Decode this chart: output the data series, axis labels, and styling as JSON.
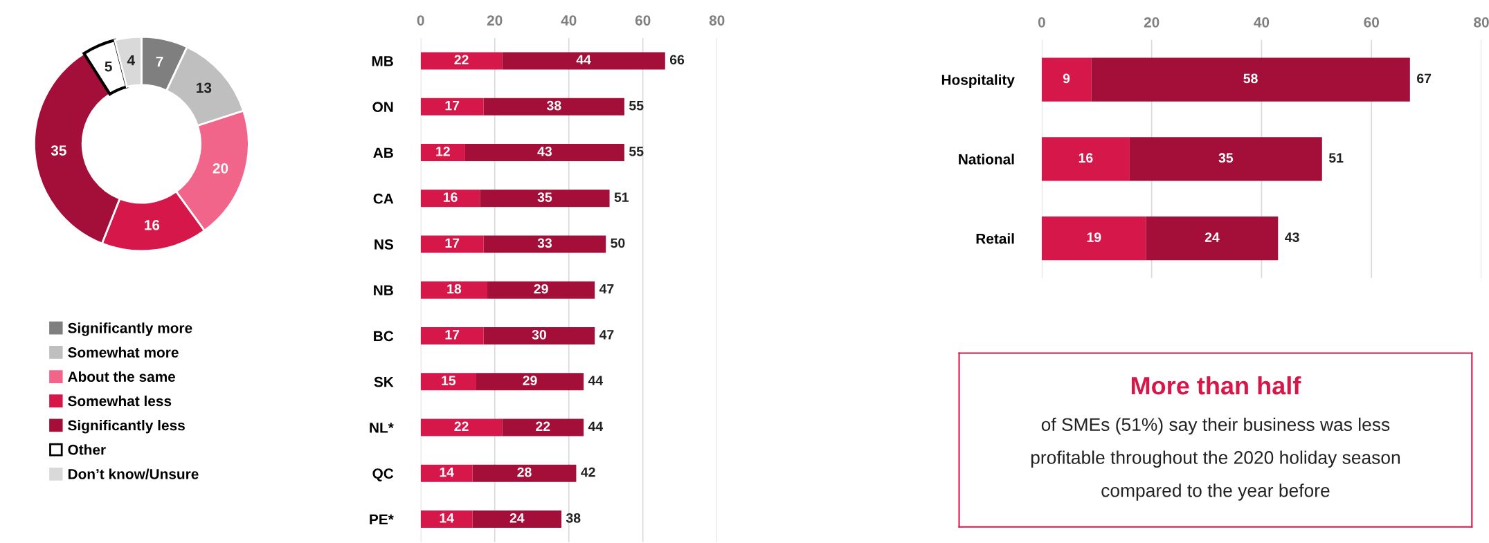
{
  "chart_data": [
    {
      "type": "donut",
      "categories": [
        "Significantly more",
        "Somewhat more",
        "About the same",
        "Somewhat less",
        "Significantly less",
        "Other",
        "Don’t know/Unsure"
      ],
      "values": [
        7,
        13,
        20,
        16,
        35,
        5,
        4
      ],
      "colors": [
        "#7f7f7f",
        "#bfbfbf",
        "#f2658a",
        "#d6174a",
        "#a30f38",
        "#ffffff",
        "#d9d9d9"
      ],
      "data_labels": true,
      "legend": "bottom"
    },
    {
      "type": "bar",
      "orientation": "horizontal",
      "stacked": true,
      "categories": [
        "MB",
        "ON",
        "AB",
        "CA",
        "NS",
        "NB",
        "BC",
        "SK",
        "NL*",
        "QC",
        "PE*"
      ],
      "series": [
        {
          "color": "#d6174a",
          "values": [
            22,
            17,
            12,
            16,
            17,
            18,
            17,
            15,
            22,
            14,
            14
          ]
        },
        {
          "color": "#a30f38",
          "values": [
            44,
            38,
            43,
            35,
            33,
            29,
            30,
            29,
            22,
            28,
            24
          ]
        }
      ],
      "totals": [
        "66",
        "55",
        "55",
        "51",
        "50",
        "47",
        "47",
        "44",
        "44",
        "42",
        "38"
      ],
      "data_labels": true,
      "xlim": [
        0,
        80
      ],
      "xticks": [
        0,
        20,
        40,
        60,
        80
      ],
      "grid": "x"
    },
    {
      "type": "bar",
      "orientation": "horizontal",
      "stacked": true,
      "categories": [
        "Hospitality",
        "National",
        "Retail"
      ],
      "series": [
        {
          "color": "#d6174a",
          "values": [
            9,
            16,
            19
          ]
        },
        {
          "color": "#a30f38",
          "values": [
            58,
            35,
            24
          ]
        }
      ],
      "totals": [
        "67",
        "51",
        "43"
      ],
      "data_labels": true,
      "xlim": [
        0,
        80
      ],
      "xticks": [
        0,
        20,
        40,
        60,
        80
      ],
      "grid": "x"
    },
    {
      "type": "other",
      "title": "More than half",
      "annotations": [
        "of SMEs (51%) say their business was less",
        "profitable throughout the 2020 holiday season",
        "compared to the year before"
      ]
    }
  ]
}
